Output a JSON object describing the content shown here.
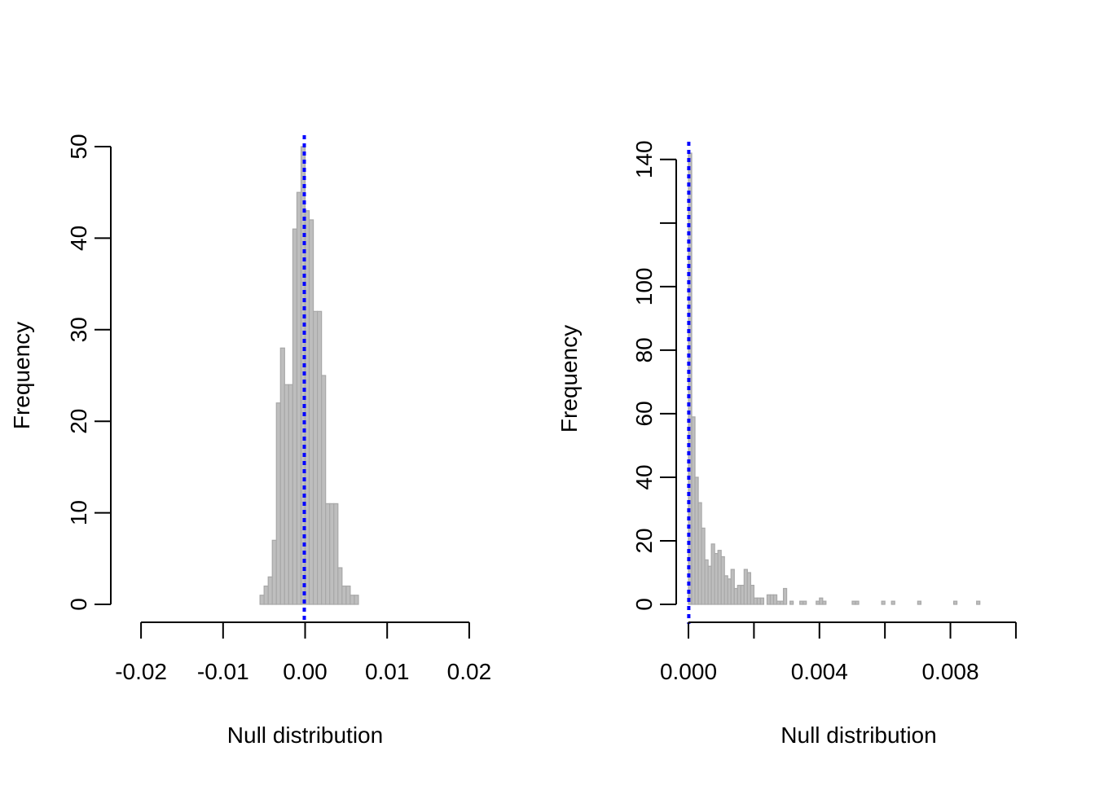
{
  "chart_data": [
    {
      "type": "bar",
      "subtype": "histogram",
      "xlabel": "Null distribution",
      "ylabel": "Frequency",
      "xlim": [
        -0.0215,
        0.0215
      ],
      "ylim": [
        0,
        50
      ],
      "bin_width": 0.0005,
      "bins_start": -0.0215,
      "bin_values": [
        0,
        0,
        0,
        0,
        0,
        0,
        0,
        0,
        0,
        0,
        0,
        0,
        0,
        0,
        0,
        0,
        0,
        0,
        0,
        0,
        0,
        0,
        0,
        0,
        0,
        0,
        0,
        0,
        0,
        0,
        0,
        0,
        1,
        2,
        3,
        7,
        22,
        28,
        24,
        24,
        41,
        45,
        50,
        43,
        42,
        32,
        32,
        25,
        11,
        11,
        11,
        4,
        2,
        2,
        1,
        1,
        0,
        0,
        0,
        0,
        0,
        0,
        0,
        0,
        0,
        0,
        0,
        0,
        0,
        0,
        0,
        0,
        0,
        0,
        0,
        0,
        0,
        0,
        0,
        0,
        0,
        0,
        0,
        0,
        0,
        0
      ],
      "vline": -0.0001,
      "x_ticks": [
        -0.02,
        -0.01,
        0.0,
        0.01,
        0.02
      ],
      "x_tick_labels": [
        "-0.02",
        "-0.01",
        "0.00",
        "0.01",
        "0.02"
      ],
      "y_ticks": [
        0,
        10,
        20,
        30,
        40,
        50
      ],
      "y_tick_labels": [
        "0",
        "10",
        "20",
        "30",
        "40",
        "50"
      ],
      "bar_fill": "#bebebe",
      "bar_stroke": "#a8a8a8",
      "vline_color": "#0000ff",
      "grid": false
    },
    {
      "type": "bar",
      "subtype": "histogram",
      "xlabel": "Null distribution",
      "ylabel": "Frequency",
      "xlim": [
        0,
        0.0104
      ],
      "ylim": [
        0,
        142
      ],
      "bin_width": 0.0001,
      "bins_start": 0,
      "bin_values": [
        142,
        59,
        40,
        32,
        24,
        14,
        12,
        19,
        16,
        17,
        15,
        9,
        8,
        11,
        5,
        6,
        6,
        11,
        10,
        6,
        2,
        2,
        2,
        0,
        3,
        3,
        3,
        1,
        1,
        5,
        0,
        1,
        0,
        0,
        1,
        1,
        0,
        0,
        0,
        1,
        2,
        1,
        0,
        0,
        0,
        0,
        0,
        0,
        0,
        0,
        1,
        1,
        0,
        0,
        0,
        0,
        0,
        0,
        0,
        1,
        0,
        0,
        1,
        0,
        0,
        0,
        0,
        0,
        0,
        0,
        1,
        0,
        0,
        0,
        0,
        0,
        0,
        0,
        0,
        0,
        0,
        1,
        0,
        0,
        0,
        0,
        0,
        0,
        1,
        0,
        0,
        0,
        0,
        0,
        0,
        0,
        0,
        0,
        0,
        0,
        0,
        0,
        0,
        0
      ],
      "vline": 1e-05,
      "x_ticks": [
        0,
        0.002,
        0.004,
        0.006,
        0.008,
        0.01
      ],
      "x_tick_labels": [
        "0.000",
        "0.004",
        "0.008"
      ],
      "x_tick_label_values": [
        0,
        0.004,
        0.008
      ],
      "y_ticks": [
        0,
        20,
        40,
        60,
        80,
        100,
        120,
        140
      ],
      "y_tick_labels": [
        "0",
        "20",
        "40",
        "60",
        "80",
        "100",
        "140"
      ],
      "y_tick_label_values": [
        0,
        20,
        40,
        60,
        80,
        100,
        140
      ],
      "bar_fill": "#bebebe",
      "bar_stroke": "#a8a8a8",
      "vline_color": "#0000ff",
      "grid": false
    }
  ]
}
